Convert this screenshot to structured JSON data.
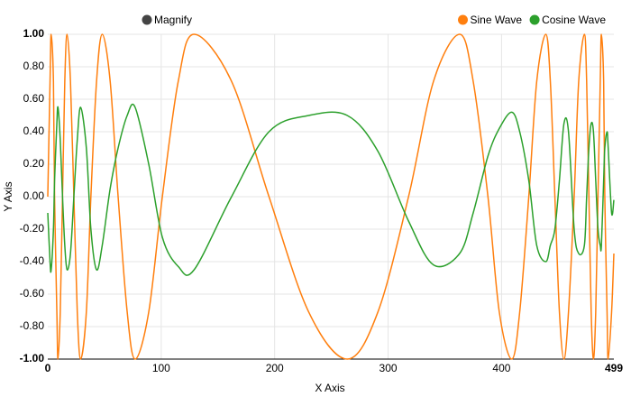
{
  "chart_data": {
    "type": "line",
    "toggle": "Magnify",
    "x_label": "X Axis",
    "y_label": "Y Axis",
    "x": [
      0,
      2,
      3,
      5,
      6,
      8,
      9,
      11,
      13,
      15,
      17,
      20,
      23,
      26,
      29,
      34,
      38,
      43,
      48,
      55,
      62,
      70,
      77,
      89,
      101,
      115,
      129,
      162,
      195,
      230,
      264,
      291,
      318,
      340,
      363,
      375,
      388,
      398,
      409,
      416,
      424,
      431,
      439,
      443,
      447,
      451,
      455,
      459,
      464,
      468,
      473,
      475,
      477,
      479,
      481,
      483,
      485,
      487,
      488,
      490,
      491,
      493,
      494,
      497,
      499
    ],
    "series": [
      {
        "name": "Sine Wave",
        "color": "#ff7f0e",
        "values": [
          0,
          0.71,
          1,
          0.71,
          0,
          -0.71,
          -1,
          -0.71,
          0,
          0.71,
          1,
          0.71,
          0,
          -0.71,
          -1,
          -0.71,
          0,
          0.71,
          1,
          0.71,
          0,
          -0.71,
          -1,
          -0.71,
          0,
          0.71,
          1,
          0.71,
          0,
          -0.71,
          -1,
          -0.71,
          0,
          0.71,
          1,
          0.71,
          0,
          -0.71,
          -1,
          -0.71,
          0,
          0.71,
          1,
          0.71,
          0,
          -0.71,
          -1,
          -0.71,
          0,
          0.71,
          1,
          0.71,
          0,
          -0.71,
          -1,
          -0.71,
          0,
          0.71,
          1,
          0.71,
          0,
          -0.71,
          -1,
          -0.71,
          -0.35
        ]
      },
      {
        "name": "Cosine Wave",
        "color": "#2ca02c",
        "values": [
          -0.1,
          -0.4,
          -0.45,
          -0.2,
          0.1,
          0.45,
          0.55,
          0.35,
          0,
          -0.3,
          -0.45,
          -0.35,
          0,
          0.35,
          0.55,
          0.3,
          -0.2,
          -0.45,
          -0.3,
          0.05,
          0.3,
          0.5,
          0.55,
          0.2,
          -0.25,
          -0.43,
          -0.45,
          0,
          0.4,
          0.5,
          0.5,
          0.28,
          -0.15,
          -0.42,
          -0.35,
          -0.1,
          0.25,
          0.42,
          0.52,
          0.4,
          0.1,
          -0.3,
          -0.4,
          -0.3,
          -0.2,
          0.1,
          0.45,
          0.4,
          -0.2,
          -0.35,
          -0.3,
          0,
          0.3,
          0.45,
          0.4,
          0.1,
          -0.2,
          -0.3,
          -0.3,
          0.1,
          0.3,
          0.4,
          0.3,
          -0.1,
          -0.02
        ]
      }
    ],
    "xlim": [
      0,
      499
    ],
    "xticks": [
      0,
      100,
      200,
      300,
      400,
      499
    ],
    "ylim": [
      -1,
      1
    ],
    "yticks": [
      {
        "value": -1,
        "label": "-1.00"
      },
      {
        "value": -0.8,
        "label": "-0.80"
      },
      {
        "value": -0.6,
        "label": "-0.60"
      },
      {
        "value": -0.4,
        "label": "-0.40"
      },
      {
        "value": -0.2,
        "label": "-0.20"
      },
      {
        "value": 0,
        "label": "0.00"
      },
      {
        "value": 0.2,
        "label": "0.20"
      },
      {
        "value": 0.4,
        "label": "0.40"
      },
      {
        "value": 0.6,
        "label": "0.60"
      },
      {
        "value": 0.8,
        "label": "0.80"
      },
      {
        "value": 1,
        "label": "1.00"
      }
    ],
    "grid": true,
    "legend": "top-right"
  }
}
